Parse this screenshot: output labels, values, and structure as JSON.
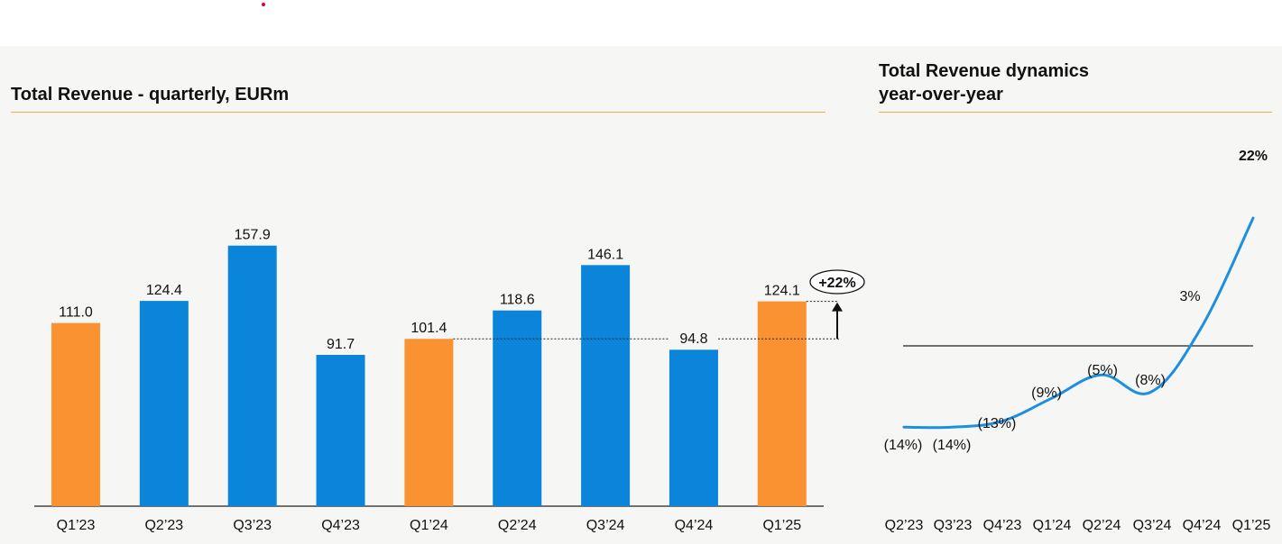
{
  "left_title": "Total Revenue - quarterly, EURm",
  "right_title_line1": "Total Revenue dynamics",
  "right_title_line2": "year-over-year",
  "colors": {
    "orange": "#fb9232",
    "blue": "#0a85d9",
    "rule": "#f6a85d",
    "line": "#1c8fe0"
  },
  "growth_badge": "+22%",
  "chart_data": [
    {
      "type": "bar",
      "title": "Total Revenue - quarterly, EURm",
      "categories": [
        "Q1’23",
        "Q2’23",
        "Q3’23",
        "Q4’23",
        "Q1’24",
        "Q2’24",
        "Q3’24",
        "Q4’24",
        "Q1’25"
      ],
      "values": [
        111.0,
        124.4,
        157.9,
        91.7,
        101.4,
        118.6,
        146.1,
        94.8,
        124.1
      ],
      "labels": [
        "111.0",
        "124.4",
        "157.9",
        "91.7",
        "101.4",
        "118.6",
        "146.1",
        "94.8",
        "124.1"
      ],
      "highlight": [
        true,
        false,
        false,
        false,
        true,
        false,
        false,
        false,
        true
      ],
      "reference_value": 101.4,
      "annotation": "+22%",
      "ylim": [
        0,
        160
      ]
    },
    {
      "type": "line",
      "title": "Total Revenue dynamics year-over-year",
      "categories": [
        "Q2’23",
        "Q3’23",
        "Q4’23",
        "Q1’24",
        "Q2’24",
        "Q3’24",
        "Q4’24",
        "Q1’25"
      ],
      "values": [
        -14,
        -14,
        -13,
        -9,
        -5,
        -8,
        3,
        22
      ],
      "labels": [
        "(14%)",
        "(14%)",
        "(13%)",
        "(9%)",
        "(5%)",
        "(8%)",
        "3%",
        "22%"
      ],
      "baseline": 0
    }
  ]
}
